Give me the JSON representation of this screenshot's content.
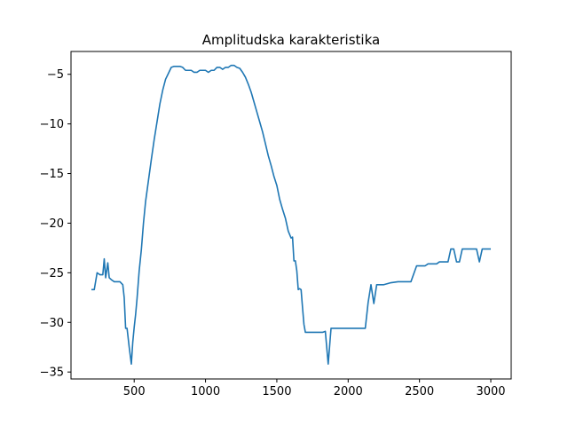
{
  "chart_data": {
    "type": "line",
    "title": "Amplitudska karakteristika",
    "xlabel": "",
    "ylabel": "",
    "xlim": [
      57,
      3143
    ],
    "ylim": [
      -35.7,
      -2.7
    ],
    "x_ticks": [
      500,
      1000,
      1500,
      2000,
      2500,
      3000
    ],
    "x_tick_labels": [
      "500",
      "1000",
      "1500",
      "2000",
      "2500",
      "3000"
    ],
    "y_ticks": [
      -35,
      -30,
      -25,
      -20,
      -15,
      -10,
      -5
    ],
    "y_tick_labels": [
      "−35",
      "−30",
      "−25",
      "−20",
      "−15",
      "−10",
      "−5"
    ],
    "grid": false,
    "line_color": "#1f77b4",
    "series": [
      {
        "x": [
          200,
          220,
          240,
          260,
          280,
          290,
          300,
          315,
          325,
          340,
          360,
          380,
          400,
          420,
          430,
          440,
          450,
          465,
          480,
          490,
          500,
          510,
          520,
          535,
          550,
          565,
          580,
          600,
          620,
          640,
          660,
          680,
          700,
          720,
          740,
          760,
          780,
          800,
          820,
          840,
          860,
          880,
          900,
          920,
          940,
          960,
          980,
          1000,
          1020,
          1040,
          1060,
          1080,
          1100,
          1120,
          1140,
          1160,
          1180,
          1200,
          1220,
          1240,
          1260,
          1280,
          1300,
          1320,
          1340,
          1360,
          1380,
          1400,
          1420,
          1440,
          1460,
          1480,
          1500,
          1520,
          1540,
          1560,
          1580,
          1600,
          1610,
          1620,
          1630,
          1640,
          1650,
          1660,
          1670,
          1680,
          1690,
          1700,
          1710,
          1720,
          1730,
          1740,
          1750,
          1760,
          1780,
          1800,
          1820,
          1840,
          1860,
          1880,
          1895,
          1910,
          1940,
          1980,
          2020,
          2060,
          2080,
          2100,
          2110,
          2120,
          2140,
          2160,
          2180,
          2200,
          2250,
          2300,
          2350,
          2400,
          2420,
          2440,
          2480,
          2500,
          2520,
          2540,
          2560,
          2580,
          2600,
          2620,
          2640,
          2660,
          2680,
          2700,
          2720,
          2740,
          2760,
          2780,
          2800,
          2820,
          2840,
          2860,
          2880,
          2900,
          2920,
          2940,
          2960,
          2980,
          3000
        ],
        "y": [
          -26.7,
          -26.7,
          -25.0,
          -25.2,
          -25.2,
          -23.6,
          -25.5,
          -24.0,
          -25.5,
          -25.7,
          -25.9,
          -25.9,
          -25.9,
          -26.2,
          -27.5,
          -30.6,
          -30.6,
          -32.5,
          -34.2,
          -32.0,
          -30.5,
          -29.2,
          -27.6,
          -24.8,
          -22.7,
          -20.0,
          -17.8,
          -15.7,
          -13.6,
          -11.6,
          -9.8,
          -8.0,
          -6.6,
          -5.5,
          -4.9,
          -4.3,
          -4.2,
          -4.2,
          -4.2,
          -4.3,
          -4.6,
          -4.6,
          -4.6,
          -4.8,
          -4.8,
          -4.6,
          -4.6,
          -4.6,
          -4.8,
          -4.6,
          -4.6,
          -4.3,
          -4.3,
          -4.5,
          -4.3,
          -4.3,
          -4.1,
          -4.1,
          -4.3,
          -4.4,
          -4.8,
          -5.3,
          -6.0,
          -6.8,
          -7.8,
          -8.8,
          -9.8,
          -10.8,
          -12.0,
          -13.2,
          -14.2,
          -15.3,
          -16.2,
          -17.6,
          -18.6,
          -19.5,
          -20.8,
          -21.5,
          -21.4,
          -23.8,
          -23.8,
          -24.8,
          -26.7,
          -26.6,
          -26.7,
          -28.5,
          -30.2,
          -31.0,
          -31.0,
          -31.0,
          -31.0,
          -31.0,
          -31.0,
          -31.0,
          -31.0,
          -31.0,
          -31.0,
          -30.9,
          -34.2,
          -30.6,
          -30.6,
          -30.6,
          -30.6,
          -30.6,
          -30.6,
          -30.6,
          -30.6,
          -30.6,
          -30.6,
          -30.6,
          -28.0,
          -26.2,
          -28.1,
          -26.2,
          -26.2,
          -26.0,
          -25.9,
          -25.9,
          -25.9,
          -25.9,
          -24.3,
          -24.3,
          -24.3,
          -24.3,
          -24.1,
          -24.1,
          -24.1,
          -24.1,
          -23.9,
          -23.9,
          -23.9,
          -23.9,
          -22.6,
          -22.6,
          -23.9,
          -23.9,
          -22.6,
          -22.6,
          -22.6,
          -22.6,
          -22.6,
          -22.6,
          -23.9,
          -22.6,
          -22.6,
          -22.6,
          -22.6
        ]
      }
    ]
  }
}
